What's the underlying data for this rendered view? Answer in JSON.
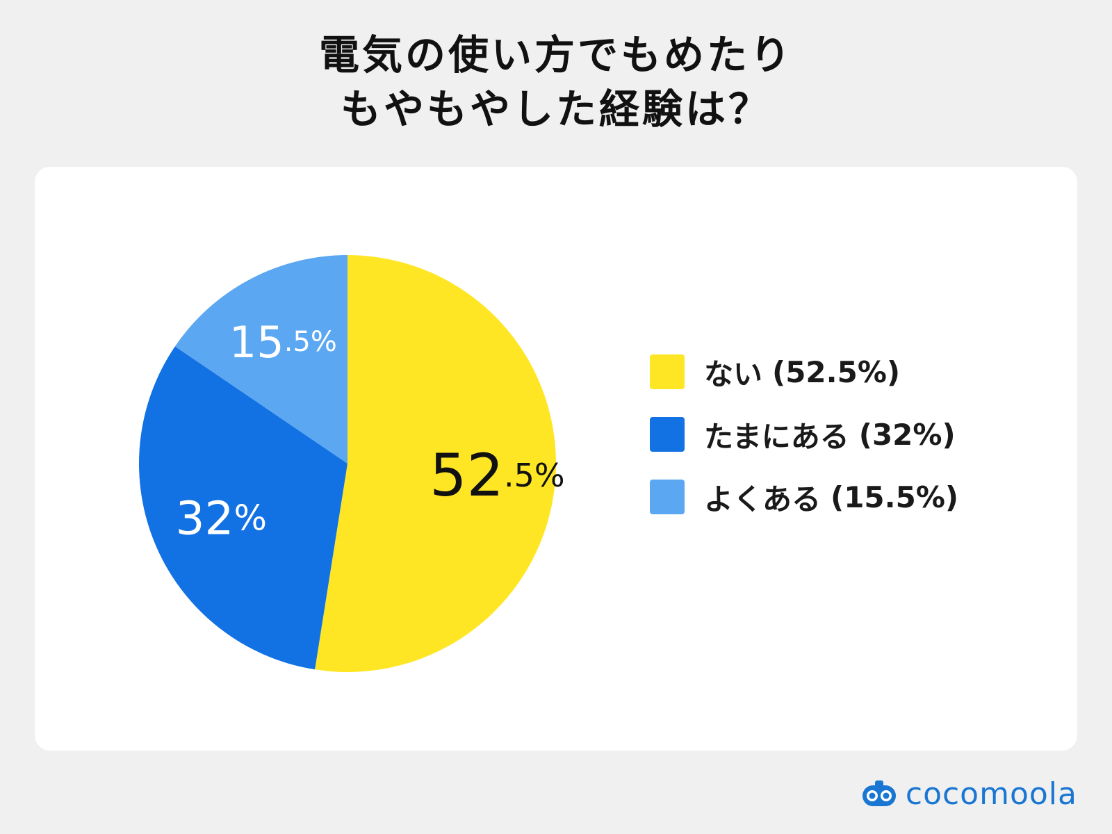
{
  "title_lines": [
    "電気の使い方でもめたり",
    "もやもやした経験は？"
  ],
  "brand": {
    "name": "cocomoola",
    "icon": "cocomoola-logo-icon",
    "color": "#1976d2"
  },
  "chart_data": {
    "type": "pie",
    "slices": [
      {
        "label": "ない",
        "legend_value": "(52.5%)",
        "value": 52.5,
        "display_main": "52",
        "display_decimal": ".5",
        "display_pct": "%",
        "color": "#ffe625",
        "text_color": "#111111"
      },
      {
        "label": "たまにある",
        "legend_value": "(32%)",
        "value": 32,
        "display_main": "32",
        "display_decimal": "",
        "display_pct": "%",
        "color": "#1271e3",
        "text_color": "#ffffff"
      },
      {
        "label": "よくある",
        "legend_value": "(15.5%)",
        "value": 15.5,
        "display_main": "15",
        "display_decimal": ".5",
        "display_pct": "%",
        "color": "#5ba7f2",
        "text_color": "#ffffff"
      }
    ],
    "start_angle_deg": 0,
    "direction": "clockwise",
    "legend_position": "right"
  }
}
